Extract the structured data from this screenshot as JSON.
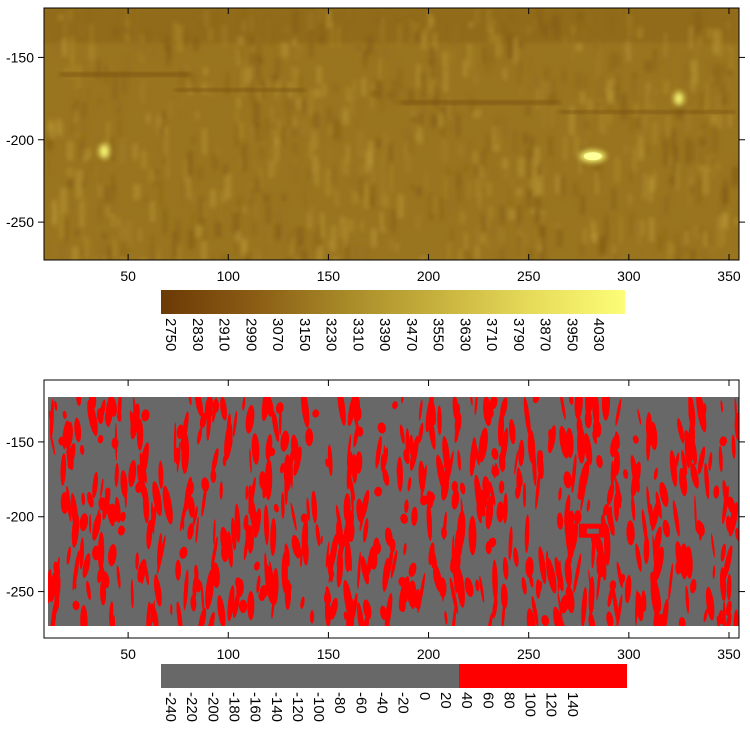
{
  "chart_data": [
    {
      "type": "heatmap",
      "title": "",
      "xlabel": "",
      "ylabel": "",
      "xlim": [
        8,
        355
      ],
      "ylim": [
        -273,
        -120
      ],
      "x_ticks": [
        50,
        100,
        150,
        200,
        250,
        300,
        350
      ],
      "y_ticks": [
        -150,
        -200,
        -250
      ],
      "colorbar": {
        "colors": [
          "#6b3a06",
          "#8a5c14",
          "#a88a28",
          "#c8b23e",
          "#e6dc5a",
          "#fdfd78"
        ],
        "labels": [
          "2750",
          "2830",
          "2910",
          "2990",
          "3070",
          "3150",
          "3230",
          "3310",
          "3390",
          "3470",
          "3550",
          "3630",
          "3710",
          "3790",
          "3870",
          "3950",
          "4030"
        ]
      },
      "features": [
        {
          "x": 282,
          "y": -210,
          "label": "bright anomaly"
        },
        {
          "x": 325,
          "y": -175,
          "label": "bright spot"
        },
        {
          "x": 38,
          "y": -207,
          "label": "bright spot"
        }
      ]
    },
    {
      "type": "heatmap",
      "title": "",
      "xlabel": "",
      "ylabel": "",
      "xlim": [
        8,
        355
      ],
      "ylim": [
        -273,
        -120
      ],
      "x_ticks": [
        50,
        100,
        150,
        200,
        250,
        300,
        350
      ],
      "y_ticks": [
        -150,
        -200,
        -250
      ],
      "colorbar": {
        "colors": [
          "#686868",
          "#ff0000"
        ],
        "threshold": 10,
        "labels": [
          "-240",
          "-220",
          "-200",
          "-180",
          "-160",
          "-140",
          "-120",
          "-100",
          "-80",
          "-60",
          "-40",
          "-20",
          "0",
          "20",
          "40",
          "60",
          "80",
          "100",
          "120",
          "140"
        ]
      }
    }
  ]
}
